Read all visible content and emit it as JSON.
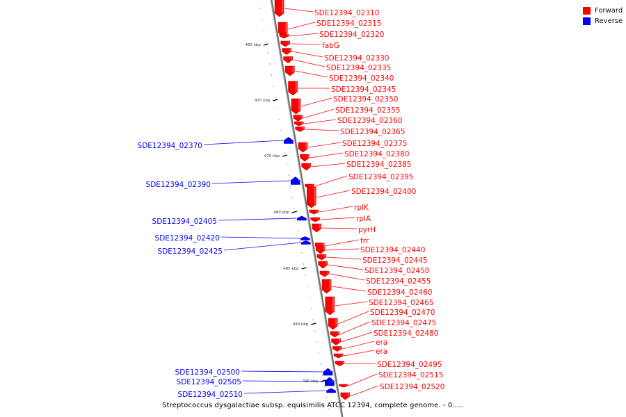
{
  "caption": "Streptococcus dysgalactiae subsp. equisimilis ATCC 12394, complete genome. - 0.....",
  "colors": {
    "forward": "#ff0000",
    "reverse": "#0000ff"
  },
  "legend": [
    {
      "label": "Forward",
      "strand": "forward",
      "color": "#ff0000"
    },
    {
      "label": "Reverse",
      "strand": "reverse",
      "color": "#0000ff"
    }
  ],
  "ruler": [
    "465 kbp",
    "470 kbp",
    "475 kbp",
    "480 kbp",
    "485 kbp",
    "490 kbp",
    "495 kbp"
  ],
  "genes": [
    {
      "label": "SDE12394_02310",
      "strand": "forward"
    },
    {
      "label": "SDE12394_02315",
      "strand": "forward"
    },
    {
      "label": "SDE12394_02320",
      "strand": "forward"
    },
    {
      "label": "fabG",
      "strand": "forward"
    },
    {
      "label": "SDE12394_02330",
      "strand": "forward"
    },
    {
      "label": "SDE12394_02335",
      "strand": "forward"
    },
    {
      "label": "SDE12394_02340",
      "strand": "forward"
    },
    {
      "label": "SDE12394_02345",
      "strand": "forward"
    },
    {
      "label": "SDE12394_02350",
      "strand": "forward"
    },
    {
      "label": "SDE12394_02355",
      "strand": "forward"
    },
    {
      "label": "SDE12394_02360",
      "strand": "forward"
    },
    {
      "label": "SDE12394_02365",
      "strand": "forward"
    },
    {
      "label": "SDE12394_02370",
      "strand": "reverse"
    },
    {
      "label": "SDE12394_02375",
      "strand": "forward"
    },
    {
      "label": "SDE12394_02380",
      "strand": "forward"
    },
    {
      "label": "SDE12394_02385",
      "strand": "forward"
    },
    {
      "label": "SDE12394_02390",
      "strand": "reverse"
    },
    {
      "label": "SDE12394_02395",
      "strand": "forward"
    },
    {
      "label": "SDE12394_02400",
      "strand": "forward"
    },
    {
      "label": "rplK",
      "strand": "forward"
    },
    {
      "label": "rplA",
      "strand": "forward"
    },
    {
      "label": "SDE12394_02405",
      "strand": "reverse"
    },
    {
      "label": "pyrH",
      "strand": "forward"
    },
    {
      "label": "SDE12394_02420",
      "strand": "reverse"
    },
    {
      "label": "frr",
      "strand": "forward"
    },
    {
      "label": "SDE12394_02425",
      "strand": "reverse"
    },
    {
      "label": "SDE12394_02440",
      "strand": "forward"
    },
    {
      "label": "SDE12394_02445",
      "strand": "forward"
    },
    {
      "label": "SDE12394_02450",
      "strand": "forward"
    },
    {
      "label": "SDE12394_02455",
      "strand": "forward"
    },
    {
      "label": "SDE12394_02460",
      "strand": "forward"
    },
    {
      "label": "SDE12394_02465",
      "strand": "forward"
    },
    {
      "label": "SDE12394_02470",
      "strand": "forward"
    },
    {
      "label": "SDE12394_02475",
      "strand": "forward"
    },
    {
      "label": "SDE12394_02480",
      "strand": "forward"
    },
    {
      "label": "era",
      "strand": "forward"
    },
    {
      "label": "era",
      "strand": "forward"
    },
    {
      "label": "SDE12394_02495",
      "strand": "forward"
    },
    {
      "label": "SDE12394_02500",
      "strand": "reverse"
    },
    {
      "label": "SDE12394_02505",
      "strand": "reverse"
    },
    {
      "label": "SDE12394_02515",
      "strand": "forward"
    },
    {
      "label": "SDE12394_02510",
      "strand": "reverse"
    },
    {
      "label": "SDE12394_02520",
      "strand": "forward"
    }
  ]
}
